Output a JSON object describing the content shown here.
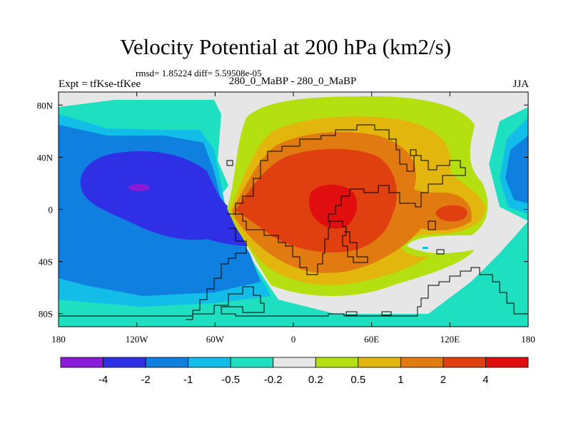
{
  "chart_data": {
    "type": "heatmap",
    "title": "Velocity Potential at 200 hPa (km2/s)",
    "stats_line": "rmsd= 1.85224 diff= 5.59508e-05",
    "left_label": "Expt = tfKse-tfKee",
    "center_label": "280_0_MaBP - 280_0_MaBP",
    "right_label": "JJA",
    "x_range": [
      -180,
      180
    ],
    "y_range": [
      -90,
      90
    ],
    "x_ticks": [
      {
        "value": -180,
        "label": "180"
      },
      {
        "value": -120,
        "label": "120W"
      },
      {
        "value": -60,
        "label": "60W"
      },
      {
        "value": 0,
        "label": "0"
      },
      {
        "value": 60,
        "label": "60E"
      },
      {
        "value": 120,
        "label": "120E"
      },
      {
        "value": 180,
        "label": "180"
      }
    ],
    "y_ticks": [
      {
        "value": 80,
        "label": "80N"
      },
      {
        "value": 40,
        "label": "40N"
      },
      {
        "value": 0,
        "label": "0"
      },
      {
        "value": -40,
        "label": "40S"
      },
      {
        "value": -80,
        "label": "80S"
      }
    ],
    "contour_levels": [
      -4,
      -2,
      -1,
      -0.5,
      -0.2,
      0.2,
      0.5,
      1,
      2,
      4
    ],
    "colorbar_labels": [
      "-4",
      "-2",
      "-1",
      "-0.5",
      "-0.2",
      "0.2",
      "0.5",
      "1",
      "2",
      "4"
    ],
    "colorbar_colors": [
      "#8a1cd8",
      "#2f2fe6",
      "#0f80e0",
      "#12bde8",
      "#1ee0c0",
      "#e6e6e6",
      "#b4df10",
      "#e2b60c",
      "#e27a12",
      "#e04010",
      "#e00e0e"
    ],
    "field_regions": [
      {
        "name": "pacific-negative-centre",
        "min_value": -4,
        "center_lon": -150,
        "center_lat": 17
      },
      {
        "name": "african-positive-centre",
        "max_value": 4,
        "center_lon": 30,
        "center_lat": 5
      },
      {
        "name": "indian-positive-centre",
        "max_value": 2,
        "center_lon": 100,
        "center_lat": 0
      }
    ]
  }
}
